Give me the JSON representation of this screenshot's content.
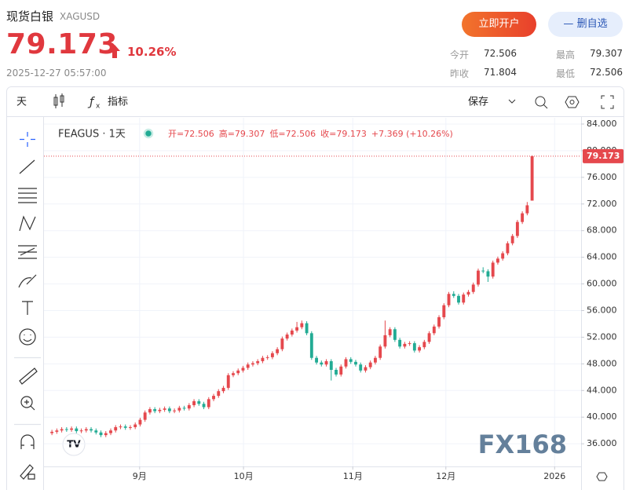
{
  "header": {
    "title": "现货白银",
    "symbol": "XAGUSD",
    "price": "79.173",
    "change": "10.26%",
    "time": "2025-12-27 05:57:00",
    "buttons": [
      "立即开户",
      "删自选"
    ],
    "stats": [
      {
        "label": "今开",
        "value": "72.506"
      },
      {
        "label": "最高",
        "value": "79.307"
      },
      {
        "label": "昨收",
        "value": "71.804"
      },
      {
        "label": "最低",
        "value": "72.506"
      }
    ]
  },
  "toolbar": {
    "interval": "天",
    "indicators": "指标",
    "save": "保存"
  },
  "chart_data": {
    "type": "candlestick",
    "symbol_label": "FEAGUS · 1天",
    "legend": [
      "开=72.506",
      "高=79.307",
      "低=72.506",
      "收=79.173",
      "+7.369 (+10.26%)"
    ],
    "up_color": "#e5484d",
    "down_color": "#22ab94",
    "open": [
      37.6,
      37.8,
      38.0,
      38.2,
      38.1,
      38.3,
      37.9,
      38.0,
      38.2,
      38.0,
      37.7,
      37.3,
      37.6,
      38.0,
      38.5,
      38.6,
      38.4,
      38.5,
      38.9,
      39.6,
      40.7,
      41.2,
      40.9,
      41.1,
      41.3,
      40.9,
      41.0,
      41.4,
      41.3,
      41.8,
      42.4,
      42.0,
      41.5,
      42.7,
      43.2,
      43.9,
      44.4,
      46.3,
      46.6,
      47.0,
      47.4,
      47.9,
      48.1,
      48.4,
      48.9,
      49.0,
      49.6,
      50.2,
      51.8,
      52.4,
      53.0,
      53.5,
      54.1,
      52.6,
      48.9,
      48.2,
      47.9,
      48.4,
      47.1,
      46.4,
      47.6,
      48.7,
      48.3,
      47.9,
      47.0,
      47.5,
      48.2,
      48.9,
      50.6,
      52.3,
      53.2,
      51.6,
      50.6,
      51.0,
      51.1,
      50.0,
      50.5,
      51.3,
      52.6,
      53.6,
      55.0,
      56.8,
      58.5,
      58.2,
      57.2,
      58.4,
      58.8,
      59.9,
      62.0,
      61.9,
      61.1,
      63.2,
      63.8,
      64.6,
      66.1,
      67.2,
      69.3,
      70.6,
      72.506
    ],
    "high": [
      38.1,
      38.3,
      38.5,
      38.5,
      38.6,
      38.6,
      38.3,
      38.5,
      38.5,
      38.3,
      38.0,
      37.9,
      38.3,
      38.8,
      38.9,
      38.9,
      38.8,
      39.2,
      39.9,
      41.0,
      41.5,
      41.5,
      41.4,
      41.6,
      41.6,
      41.3,
      41.7,
      41.7,
      42.1,
      42.7,
      42.7,
      42.3,
      43.0,
      43.5,
      44.2,
      44.7,
      46.6,
      46.9,
      47.3,
      47.7,
      48.2,
      48.4,
      48.7,
      49.2,
      49.3,
      49.9,
      50.5,
      52.1,
      52.7,
      53.3,
      54.3,
      54.5,
      54.4,
      52.9,
      49.2,
      48.5,
      48.7,
      48.7,
      47.4,
      47.9,
      49.0,
      49.0,
      48.6,
      48.2,
      47.8,
      48.5,
      49.2,
      50.9,
      54.5,
      53.5,
      53.5,
      51.9,
      51.3,
      51.4,
      51.4,
      50.8,
      51.6,
      52.9,
      53.9,
      55.3,
      57.1,
      58.8,
      58.9,
      58.5,
      58.7,
      59.1,
      60.2,
      62.3,
      62.5,
      62.2,
      63.5,
      64.1,
      64.9,
      66.4,
      67.5,
      69.6,
      70.9,
      72.3,
      79.307
    ],
    "low": [
      37.3,
      37.5,
      37.7,
      37.8,
      37.8,
      37.6,
      37.6,
      37.7,
      37.7,
      37.4,
      37.0,
      37.0,
      37.3,
      37.7,
      38.2,
      38.1,
      38.1,
      38.2,
      38.6,
      39.3,
      40.4,
      40.6,
      40.6,
      40.8,
      40.6,
      40.6,
      40.7,
      41.0,
      41.0,
      41.5,
      41.7,
      41.2,
      41.2,
      42.4,
      42.9,
      43.6,
      44.1,
      46.0,
      46.3,
      46.7,
      47.1,
      47.6,
      47.8,
      48.1,
      48.6,
      48.7,
      49.3,
      49.9,
      51.5,
      52.1,
      52.7,
      53.2,
      52.3,
      48.6,
      47.9,
      47.6,
      47.6,
      45.5,
      46.1,
      46.1,
      47.3,
      48.0,
      47.6,
      46.7,
      46.7,
      47.2,
      47.9,
      48.6,
      50.3,
      52.0,
      51.3,
      50.3,
      50.3,
      50.7,
      49.7,
      49.7,
      50.2,
      51.0,
      52.3,
      53.3,
      54.7,
      56.5,
      57.9,
      56.9,
      56.9,
      58.1,
      58.5,
      59.6,
      61.6,
      60.3,
      60.8,
      62.9,
      63.5,
      64.3,
      65.8,
      66.9,
      69.0,
      70.3,
      72.506
    ],
    "close": [
      37.8,
      38.0,
      38.2,
      38.1,
      38.3,
      37.9,
      38.0,
      38.2,
      38.0,
      37.7,
      37.3,
      37.6,
      38.0,
      38.5,
      38.6,
      38.4,
      38.5,
      38.9,
      39.6,
      40.7,
      41.2,
      40.9,
      41.1,
      41.3,
      40.9,
      41.0,
      41.4,
      41.3,
      41.8,
      42.4,
      42.0,
      41.5,
      42.7,
      43.2,
      43.9,
      44.4,
      46.3,
      46.6,
      47.0,
      47.4,
      47.9,
      48.1,
      48.4,
      48.9,
      49.0,
      49.6,
      50.2,
      51.8,
      52.4,
      53.0,
      53.5,
      54.1,
      52.6,
      48.9,
      48.2,
      47.9,
      48.4,
      47.1,
      46.4,
      47.6,
      48.7,
      48.3,
      47.9,
      47.0,
      47.5,
      48.2,
      48.9,
      50.6,
      52.3,
      53.2,
      51.6,
      50.6,
      51.0,
      51.1,
      50.0,
      50.5,
      51.3,
      52.6,
      53.6,
      55.0,
      56.8,
      58.5,
      58.2,
      57.2,
      58.4,
      58.8,
      59.9,
      62.0,
      61.9,
      61.1,
      63.2,
      63.8,
      64.6,
      66.1,
      67.2,
      69.3,
      70.6,
      71.804,
      79.173
    ],
    "ylim": [
      32.6,
      84.94
    ],
    "yticks": [
      {
        "value": 36,
        "label": "36.000"
      },
      {
        "value": 40,
        "label": "40.000"
      },
      {
        "value": 44,
        "label": "44.000"
      },
      {
        "value": 48,
        "label": "48.000"
      },
      {
        "value": 52,
        "label": "52.000"
      },
      {
        "value": 56,
        "label": "56.000"
      },
      {
        "value": 60,
        "label": "60.000"
      },
      {
        "value": 64,
        "label": "64.000"
      },
      {
        "value": 68,
        "label": "68.000"
      },
      {
        "value": 72,
        "label": "72.000"
      },
      {
        "value": 76,
        "label": "76.000"
      },
      {
        "value": 80,
        "label": "80.000"
      },
      {
        "value": 84,
        "label": "84.000"
      }
    ],
    "xlim": [
      -0.5,
      108
    ],
    "xticks": [
      {
        "value": 17.9,
        "label": "9月"
      },
      {
        "value": 39.1,
        "label": "10月"
      },
      {
        "value": 61.4,
        "label": "11月"
      },
      {
        "value": 80.4,
        "label": "12月"
      },
      {
        "value": 102.6,
        "label": "2026"
      }
    ],
    "grid": true,
    "last_price_line": true,
    "watermark": "FX168"
  }
}
